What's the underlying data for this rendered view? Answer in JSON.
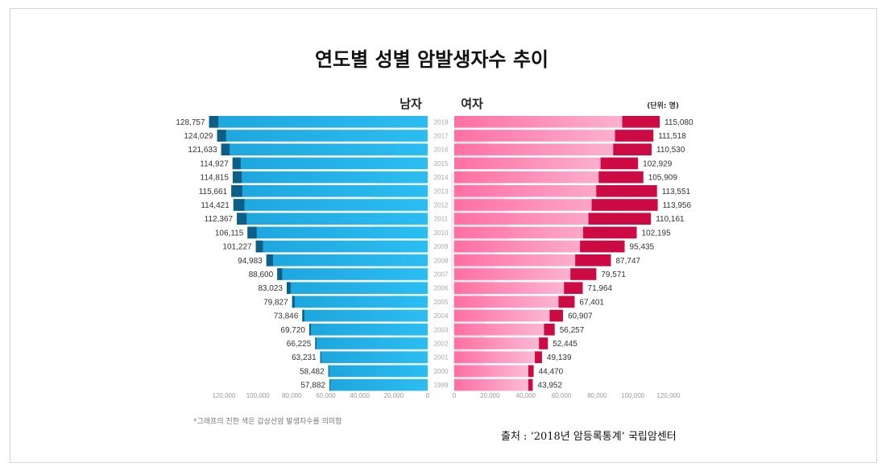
{
  "title": "연도별 성별 암발생자수 추이",
  "footnote": "*그래프의 진한 색은 갑상선암 발생자수를 의미함",
  "source": "출처 : ‘2018년 암등록통계’ 국립암센터",
  "colors": {
    "male_light": "#2bbdf2",
    "male_dark": "#0d5f86",
    "female_light": "#fb9ec2",
    "female_dark": "#cc0a44",
    "watermark": "#e6e6e6"
  },
  "chart_data": {
    "type": "bar",
    "orientation": "horizontal-population-pyramid",
    "title": "연도별 성별 암발생자수 추이",
    "unit_label": "(단위: 명)",
    "categories": [
      "2018",
      "2017",
      "2016",
      "2015",
      "2014",
      "2013",
      "2012",
      "2011",
      "2010",
      "2009",
      "2008",
      "2007",
      "2006",
      "2005",
      "2004",
      "2003",
      "2002",
      "2001",
      "2000",
      "1999"
    ],
    "series": [
      {
        "name": "남자",
        "side": "left",
        "values": [
          128757,
          124029,
          121633,
          114927,
          114815,
          115661,
          114421,
          112367,
          106115,
          101227,
          94983,
          88600,
          83023,
          79827,
          73846,
          69720,
          66225,
          63231,
          58482,
          57882
        ],
        "value_labels": [
          "128,757",
          "124,029",
          "121,633",
          "114,927",
          "114,815",
          "115,661",
          "114,421",
          "112,367",
          "106,115",
          "101,227",
          "94,983",
          "88,600",
          "83,023",
          "79,827",
          "73,846",
          "69,720",
          "66,225",
          "63,231",
          "58,482",
          "57,882"
        ],
        "dark_portion": [
          5500,
          5300,
          5000,
          4800,
          5300,
          6500,
          6500,
          5700,
          5400,
          4200,
          3900,
          2900,
          2300,
          1500,
          1200,
          900,
          700,
          600,
          500,
          400
        ]
      },
      {
        "name": "여자",
        "side": "right",
        "values": [
          115080,
          111518,
          110530,
          102929,
          105909,
          113551,
          113956,
          110161,
          102195,
          95435,
          87747,
          79571,
          71964,
          67401,
          60907,
          56257,
          52445,
          49139,
          44470,
          43952
        ],
        "value_labels": [
          "115,080",
          "111,518",
          "110,530",
          "102,929",
          "105,909",
          "113,551",
          "113,956",
          "110,161",
          "102,195",
          "95,435",
          "87,747",
          "79,571",
          "71,964",
          "67,401",
          "60,907",
          "56,257",
          "52,445",
          "49,139",
          "44,470",
          "43,952"
        ],
        "dark_portion": [
          21000,
          21500,
          21500,
          21000,
          25000,
          34000,
          37000,
          35000,
          30000,
          25000,
          20000,
          14500,
          10500,
          9000,
          7500,
          6000,
          5000,
          4000,
          3000,
          2500
        ]
      }
    ],
    "left_ticks": [
      "120,000",
      "100,000",
      "80,000",
      "60,000",
      "40,000",
      "20,000",
      "0"
    ],
    "right_ticks": [
      "0",
      "20,000",
      "40,000",
      "60,000",
      "80,000",
      "100,000",
      "120,000"
    ],
    "xlim": [
      0,
      120000
    ],
    "grid": false
  }
}
